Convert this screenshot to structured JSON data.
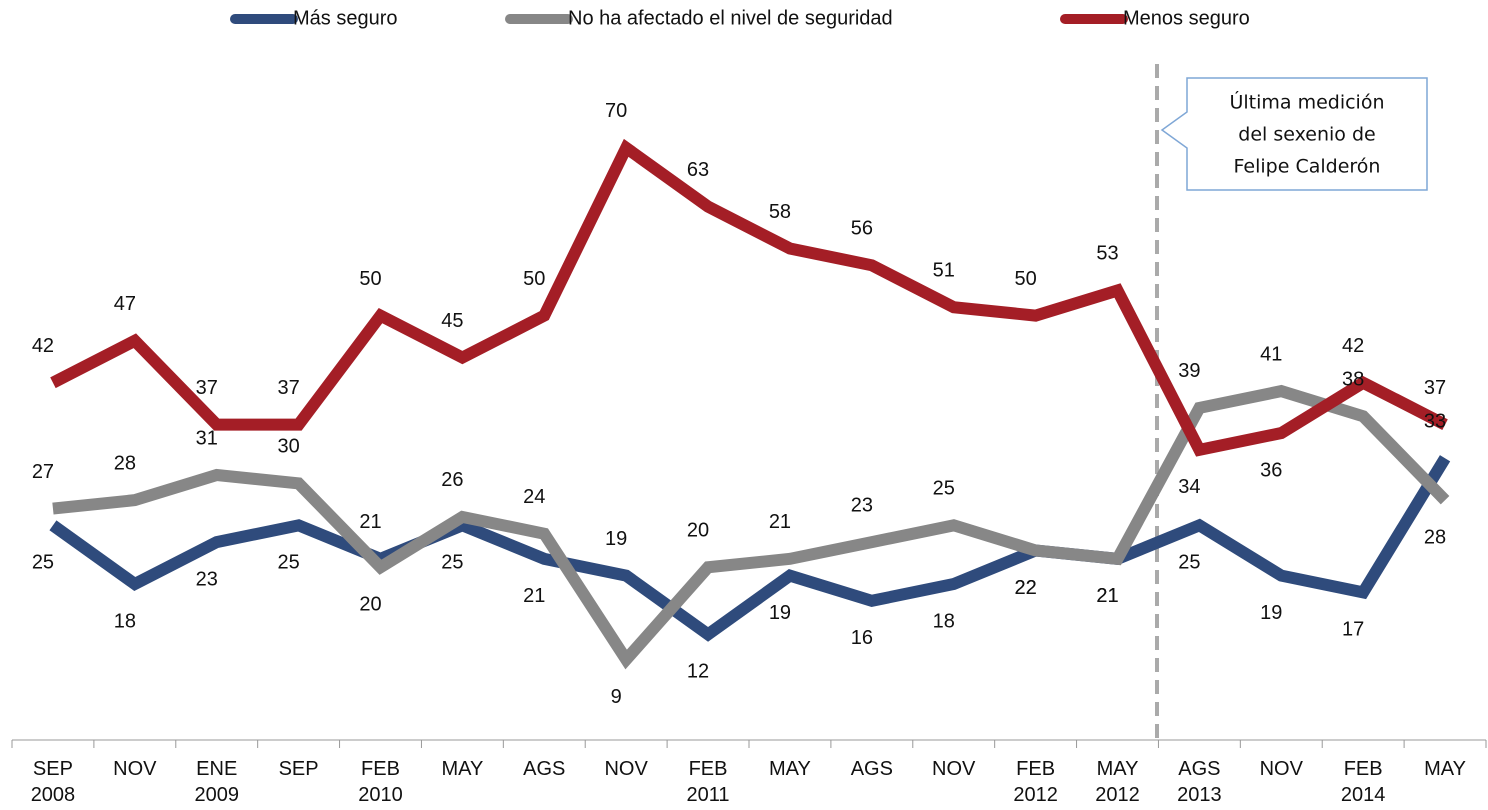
{
  "chart_data": {
    "type": "line",
    "categories": [
      "SEP 2008",
      "NOV",
      "ENE 2009",
      "SEP",
      "FEB 2010",
      "MAY",
      "AGS",
      "NOV",
      "FEB 2011",
      "MAY",
      "AGS",
      "NOV",
      "FEB 2012",
      "MAY 2012",
      "AGS 2013",
      "NOV",
      "FEB 2014",
      "MAY"
    ],
    "series": [
      {
        "name": "Más seguro",
        "color": "#2f4b7c",
        "values": [
          25,
          18,
          23,
          25,
          21,
          25,
          21,
          19,
          12,
          19,
          16,
          18,
          22,
          21,
          25,
          19,
          17,
          33
        ]
      },
      {
        "name": "No ha afectado el nivel de seguridad",
        "color": "#878787",
        "values": [
          27,
          28,
          31,
          30,
          20,
          26,
          24,
          9,
          20,
          21,
          23,
          25,
          22,
          21,
          39,
          41,
          38,
          28
        ]
      },
      {
        "name": "Menos seguro",
        "color": "#a41e26",
        "values": [
          42,
          47,
          37,
          37,
          50,
          45,
          50,
          70,
          63,
          58,
          56,
          51,
          50,
          53,
          34,
          36,
          42,
          37
        ]
      }
    ],
    "ylim": [
      0,
      80
    ],
    "annotation": [
      "Última medición",
      "del sexenio de",
      "Felipe Calderón"
    ]
  }
}
